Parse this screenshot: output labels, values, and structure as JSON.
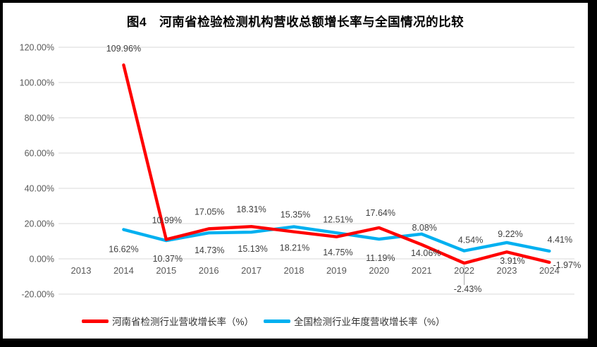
{
  "title": "图4　河南省检验检测机构营收总额增长率与全国情况的比较",
  "chart_data": {
    "type": "line",
    "title": "图4　河南省检验检测机构营收总额增长率与全国情况的比较",
    "categories": [
      "2013",
      "2014",
      "2015",
      "2016",
      "2017",
      "2018",
      "2019",
      "2020",
      "2021",
      "2022",
      "2023",
      "2024"
    ],
    "y_axis": {
      "min": -20,
      "max": 120,
      "step": 20,
      "tick_values": [
        120,
        100,
        80,
        60,
        40,
        20,
        0,
        -20
      ],
      "tick_labels": [
        "120.00%",
        "100.00%",
        "80.00%",
        "60.00%",
        "40.00%",
        "20.00%",
        "0.00%",
        "-20.00%"
      ],
      "format": "0.00%"
    },
    "grid": true,
    "legend_position": "bottom",
    "series": [
      {
        "name": "河南省检测行业营收增长率（%）",
        "color": "#FF0000",
        "values": [
          null,
          109.96,
          10.99,
          17.05,
          18.31,
          15.35,
          12.51,
          17.64,
          8.08,
          -2.43,
          3.91,
          -1.97
        ],
        "data_labels": [
          null,
          "109.96%",
          "10.99%",
          "17.05%",
          "18.31%",
          "15.35%",
          "12.51%",
          "17.64%",
          "8.08%",
          "-2.43%",
          "3.91%",
          "-1.97%"
        ],
        "label_offsets": [
          null,
          [
            0,
            -19
          ],
          [
            1,
            -23
          ],
          [
            1,
            -20
          ],
          [
            0,
            -20
          ],
          [
            2,
            -20
          ],
          [
            2,
            -20
          ],
          [
            2,
            -17
          ],
          [
            4,
            -20
          ],
          [
            5,
            41
          ],
          [
            8,
            17
          ],
          [
            25,
            8
          ]
        ],
        "leader_index": 9
      },
      {
        "name": "全国检测行业年度营收增长率（%）",
        "color": "#00B0F0",
        "values": [
          null,
          16.62,
          10.37,
          14.73,
          15.13,
          18.21,
          14.75,
          11.19,
          14.06,
          4.54,
          9.22,
          4.41
        ],
        "data_labels": [
          null,
          "16.62%",
          "10.37%",
          "14.73%",
          "15.13%",
          "18.21%",
          "14.75%",
          "11.19%",
          "14.06%",
          "4.54%",
          "9.22%",
          "4.41%"
        ],
        "label_offsets": [
          null,
          [
            0,
            32
          ],
          [
            2,
            30
          ],
          [
            1,
            29
          ],
          [
            2,
            28
          ],
          [
            1,
            34
          ],
          [
            2,
            32
          ],
          [
            2,
            31
          ],
          [
            6,
            31
          ],
          [
            9,
            -11
          ],
          [
            5,
            -8
          ],
          [
            15,
            -12
          ]
        ]
      }
    ],
    "colors": {
      "grid": "#D8D8D8",
      "axis_text": "#595959",
      "label_text": "#3F3F3F",
      "leader_line": "#A6A6A6",
      "frame_border": "#000000",
      "background": "#FFFFFF"
    }
  }
}
